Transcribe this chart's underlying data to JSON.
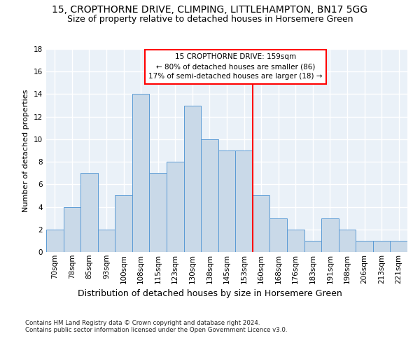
{
  "title1": "15, CROPTHORNE DRIVE, CLIMPING, LITTLEHAMPTON, BN17 5GG",
  "title2": "Size of property relative to detached houses in Horsemere Green",
  "xlabel": "Distribution of detached houses by size in Horsemere Green",
  "ylabel": "Number of detached properties",
  "footnote1": "Contains HM Land Registry data © Crown copyright and database right 2024.",
  "footnote2": "Contains public sector information licensed under the Open Government Licence v3.0.",
  "categories": [
    "70sqm",
    "78sqm",
    "85sqm",
    "93sqm",
    "100sqm",
    "108sqm",
    "115sqm",
    "123sqm",
    "130sqm",
    "138sqm",
    "145sqm",
    "153sqm",
    "160sqm",
    "168sqm",
    "176sqm",
    "183sqm",
    "191sqm",
    "198sqm",
    "206sqm",
    "213sqm",
    "221sqm"
  ],
  "values": [
    2,
    4,
    7,
    2,
    5,
    14,
    7,
    8,
    13,
    10,
    9,
    9,
    5,
    3,
    2,
    1,
    3,
    2,
    1,
    1,
    1
  ],
  "bar_color": "#c9d9e8",
  "bar_edge_color": "#5b9bd5",
  "vline_x": 11.5,
  "annotation_text1": "15 CROPTHORNE DRIVE: 159sqm",
  "annotation_text2": "← 80% of detached houses are smaller (86)",
  "annotation_text3": "17% of semi-detached houses are larger (18) →",
  "annotation_box_color": "white",
  "annotation_box_edge_color": "red",
  "vline_color": "red",
  "ylim": [
    0,
    18
  ],
  "yticks": [
    0,
    2,
    4,
    6,
    8,
    10,
    12,
    14,
    16,
    18
  ],
  "background_color": "#eaf1f8",
  "grid_color": "white",
  "title1_fontsize": 10,
  "title2_fontsize": 9,
  "xlabel_fontsize": 9,
  "ylabel_fontsize": 8,
  "tick_fontsize": 7.5,
  "annotation_fontsize": 7.5
}
